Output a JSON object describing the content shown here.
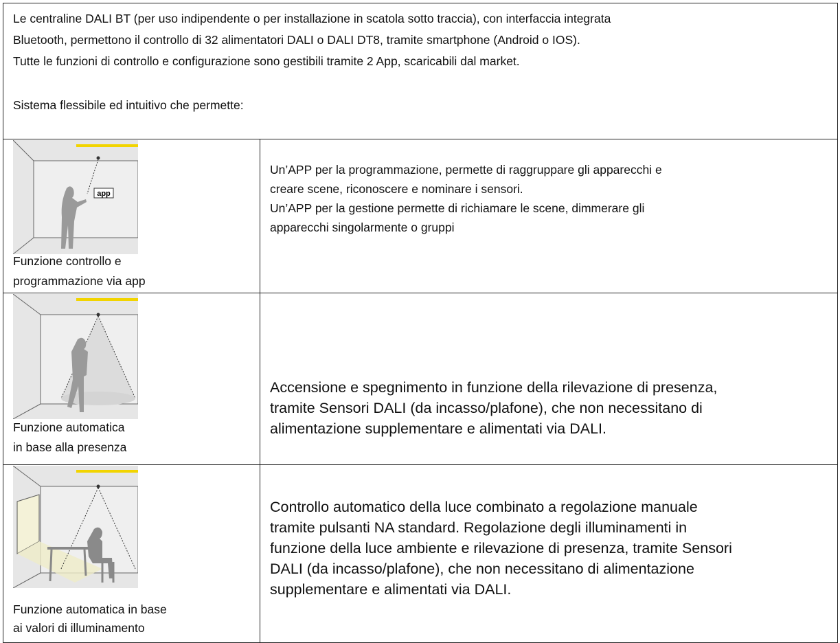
{
  "intro": {
    "lines": [
      "Le centraline DALI BT (per uso indipendente o per installazione in scatola sotto traccia), con interfaccia integrata",
      "Bluetooth, permettono il controllo di 32 alimentatori DALI o DALI DT8, tramite smartphone (Android o IOS).",
      "Tutte le funzioni di controllo e configurazione sono gestibili tramite 2 App, scaricabili dal market.",
      "Sistema flessibile ed intuitivo che permette:"
    ]
  },
  "rows": [
    {
      "image_label": "app",
      "caption": [
        "Funzione controllo e",
        "programmazione via app"
      ],
      "description": [
        "Un’APP per la programmazione, permette di raggruppare gli apparecchi e",
        "creare scene, riconoscere e nominare i sensori.",
        "Un’APP per la gestione permette di richiamare le scene, dimmerare gli",
        "apparecchi singolarmente o gruppi"
      ]
    },
    {
      "caption": [
        "Funzione automatica",
        "in base alla presenza"
      ],
      "description": [
        "Accensione e spegnimento in funzione della rilevazione di presenza,",
        "tramite Sensori DALI (da incasso/plafone), che non necessitano di",
        "alimentazione supplementare e alimentati via DALI."
      ]
    },
    {
      "caption": [
        "Funzione automatica  in base",
        "ai valori  di  illuminamento"
      ],
      "description": [
        "Controllo automatico della luce combinato a regolazione manuale",
        "tramite pulsanti NA standard. Regolazione degli illuminamenti in",
        "funzione della luce ambiente e rilevazione di presenza, tramite Sensori",
        "DALI (da incasso/plafone), che non necessitano di alimentazione",
        "supplementare e alimentati via DALI."
      ]
    }
  ]
}
